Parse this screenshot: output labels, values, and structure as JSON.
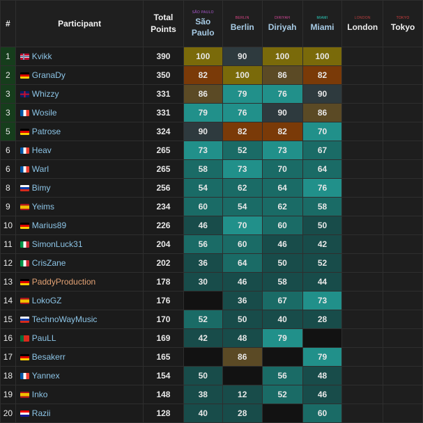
{
  "columns": {
    "rank": "#",
    "participant": "Participant",
    "total": "Total Points"
  },
  "races": [
    {
      "key": "sao_paulo",
      "name": "São Paulo",
      "tiny": "SÃO PAULO",
      "tiny_color": "#b05bd6",
      "status": "done"
    },
    {
      "key": "berlin",
      "name": "Berlin",
      "tiny": "BERLIN",
      "tiny_color": "#e0468a",
      "status": "done"
    },
    {
      "key": "diriyah",
      "name": "Diriyah",
      "tiny": "DIRIYAH",
      "tiny_color": "#e04aa0",
      "status": "done"
    },
    {
      "key": "miami",
      "name": "Miami",
      "tiny": "MIAMI",
      "tiny_color": "#2bd6c4",
      "status": "done"
    },
    {
      "key": "london",
      "name": "London",
      "tiny": "LONDON",
      "tiny_color": "#c04040",
      "status": "future"
    },
    {
      "key": "tokyo",
      "name": "Tokyo",
      "tiny": "TOKYO",
      "tiny_color": "#e04040",
      "status": "future"
    }
  ],
  "rows": [
    {
      "rank": "1",
      "name": "Kvikk",
      "flag": "no",
      "total": "390",
      "scores": [
        "100",
        "90",
        "100",
        "100",
        "",
        ""
      ]
    },
    {
      "rank": "2",
      "name": "GranaDy",
      "flag": "de",
      "total": "350",
      "scores": [
        "82",
        "100",
        "86",
        "82",
        "",
        ""
      ]
    },
    {
      "rank": "3",
      "name": "Whizzy",
      "flag": "gb",
      "total": "331",
      "scores": [
        "86",
        "79",
        "76",
        "90",
        "",
        ""
      ]
    },
    {
      "rank": "3",
      "name": "Wosile",
      "flag": "fr",
      "total": "331",
      "scores": [
        "79",
        "76",
        "90",
        "86",
        "",
        ""
      ]
    },
    {
      "rank": "5",
      "name": "Patrose",
      "flag": "de",
      "total": "324",
      "scores": [
        "90",
        "82",
        "82",
        "70",
        "",
        ""
      ]
    },
    {
      "rank": "6",
      "name": "Heav",
      "flag": "fr",
      "total": "265",
      "scores": [
        "73",
        "52",
        "73",
        "67",
        "",
        ""
      ]
    },
    {
      "rank": "6",
      "name": "Warl",
      "flag": "fr",
      "total": "265",
      "scores": [
        "58",
        "73",
        "70",
        "64",
        "",
        ""
      ]
    },
    {
      "rank": "8",
      "name": "Bimy",
      "flag": "ru",
      "total": "256",
      "scores": [
        "54",
        "62",
        "64",
        "76",
        "",
        ""
      ]
    },
    {
      "rank": "9",
      "name": "Yeims",
      "flag": "es",
      "total": "234",
      "scores": [
        "60",
        "54",
        "62",
        "58",
        "",
        ""
      ]
    },
    {
      "rank": "10",
      "name": "Marius89",
      "flag": "de",
      "total": "226",
      "scores": [
        "46",
        "70",
        "60",
        "50",
        "",
        ""
      ]
    },
    {
      "rank": "11",
      "name": "SimonLuck31",
      "flag": "it",
      "total": "204",
      "scores": [
        "56",
        "60",
        "46",
        "42",
        "",
        ""
      ]
    },
    {
      "rank": "12",
      "name": "CrisZane",
      "flag": "it",
      "total": "202",
      "scores": [
        "36",
        "64",
        "50",
        "52",
        "",
        ""
      ]
    },
    {
      "rank": "13",
      "name": "PaddyProduction",
      "flag": "de",
      "total": "178",
      "scores": [
        "30",
        "46",
        "58",
        "44",
        "",
        ""
      ]
    },
    {
      "rank": "14",
      "name": "LokoGZ",
      "flag": "es",
      "total": "176",
      "scores": [
        "",
        "36",
        "67",
        "73",
        "",
        ""
      ]
    },
    {
      "rank": "15",
      "name": "TechnoWayMusic",
      "flag": "ru",
      "total": "170",
      "scores": [
        "52",
        "50",
        "40",
        "28",
        "",
        ""
      ]
    },
    {
      "rank": "16",
      "name": "PauLL",
      "flag": "pt",
      "total": "169",
      "scores": [
        "42",
        "48",
        "79",
        "",
        "",
        ""
      ]
    },
    {
      "rank": "17",
      "name": "Besakerr",
      "flag": "de",
      "total": "165",
      "scores": [
        "",
        "86",
        "",
        "79",
        "",
        ""
      ]
    },
    {
      "rank": "18",
      "name": "Yannex",
      "flag": "fr",
      "total": "154",
      "scores": [
        "50",
        "",
        "56",
        "48",
        "",
        ""
      ]
    },
    {
      "rank": "19",
      "name": "Inko",
      "flag": "es",
      "total": "148",
      "scores": [
        "38",
        "12",
        "52",
        "46",
        "",
        ""
      ]
    },
    {
      "rank": "20",
      "name": "Razii",
      "flag": "hr",
      "total": "128",
      "scores": [
        "40",
        "28",
        "",
        "60",
        "",
        ""
      ]
    }
  ],
  "cell_colors": {
    "gold": "#7a6a0a",
    "silver": "#2e3a3e",
    "bronze": "#7a3a08",
    "brown": "#5b4a25",
    "teal_bright": "#21908a",
    "teal_mid": "#1a6b66",
    "teal_dark": "#184c4a",
    "black": "#121212"
  },
  "cell_shading": [
    [
      "gold",
      "silver",
      "gold",
      "gold",
      "",
      ""
    ],
    [
      "bronze",
      "gold",
      "brown",
      "bronze",
      "",
      ""
    ],
    [
      "brown",
      "teal_bright",
      "teal_bright",
      "silver",
      "",
      ""
    ],
    [
      "teal_bright",
      "teal_bright",
      "silver",
      "brown",
      "",
      ""
    ],
    [
      "silver",
      "bronze",
      "bronze",
      "teal_bright",
      "",
      ""
    ],
    [
      "teal_bright",
      "teal_mid",
      "teal_bright",
      "teal_mid",
      "",
      ""
    ],
    [
      "teal_mid",
      "teal_bright",
      "teal_mid",
      "teal_mid",
      "",
      ""
    ],
    [
      "teal_mid",
      "teal_mid",
      "teal_mid",
      "teal_bright",
      "",
      ""
    ],
    [
      "teal_mid",
      "teal_mid",
      "teal_mid",
      "teal_mid",
      "",
      ""
    ],
    [
      "teal_dark",
      "teal_bright",
      "teal_mid",
      "teal_dark",
      "",
      ""
    ],
    [
      "teal_mid",
      "teal_mid",
      "teal_dark",
      "teal_dark",
      "",
      ""
    ],
    [
      "teal_dark",
      "teal_mid",
      "teal_dark",
      "teal_dark",
      "",
      ""
    ],
    [
      "teal_dark",
      "teal_dark",
      "teal_dark",
      "teal_dark",
      "",
      ""
    ],
    [
      "black",
      "teal_dark",
      "teal_mid",
      "teal_bright",
      "",
      ""
    ],
    [
      "teal_mid",
      "teal_dark",
      "teal_dark",
      "teal_dark",
      "",
      ""
    ],
    [
      "teal_dark",
      "teal_dark",
      "teal_bright",
      "black",
      "",
      ""
    ],
    [
      "black",
      "brown",
      "black",
      "teal_bright",
      "",
      ""
    ],
    [
      "teal_dark",
      "black",
      "teal_mid",
      "teal_dark",
      "",
      ""
    ],
    [
      "teal_dark",
      "teal_dark",
      "teal_mid",
      "teal_dark",
      "",
      ""
    ],
    [
      "teal_dark",
      "teal_dark",
      "black",
      "teal_mid",
      "",
      ""
    ]
  ],
  "flag_styles": {
    "no": "linear-gradient(90deg, transparent 30%, #ffffff 30%, #ffffff 34%, #00205b 34%, #00205b 44%, #ffffff 44%, #ffffff 48%, transparent 48%), linear-gradient(180deg, #ba0c2f 36%, #ffffff 36%, #ffffff 42%, #00205b 42%, #00205b 58%, #ffffff 58%, #ffffff 64%, #ba0c2f 64%)",
    "de": "linear-gradient(180deg, #000000 33%, #dd0000 33%, #dd0000 66%, #ffce00 66%)",
    "gb": "linear-gradient(180deg, transparent 40%, #c8102e 40%, #c8102e 60%, transparent 60%), linear-gradient(90deg, #012169 42%, #c8102e 42%, #c8102e 58%, #012169 58%)",
    "fr": "linear-gradient(90deg, #0055a4 33%, #ffffff 33%, #ffffff 66%, #ef4135 66%)",
    "ru": "linear-gradient(180deg, #ffffff 33%, #0039a6 33%, #0039a6 66%, #d52b1e 66%)",
    "es": "linear-gradient(180deg, #aa151b 25%, #f1bf00 25%, #f1bf00 75%, #aa151b 75%)",
    "it": "linear-gradient(90deg, #009246 33%, #ffffff 33%, #ffffff 66%, #ce2b37 66%)",
    "pt": "linear-gradient(90deg, #046a38 40%, #da291c 40%)",
    "hr": "linear-gradient(180deg, #ff0000 33%, #ffffff 33%, #ffffff 66%, #171796 66%)"
  }
}
